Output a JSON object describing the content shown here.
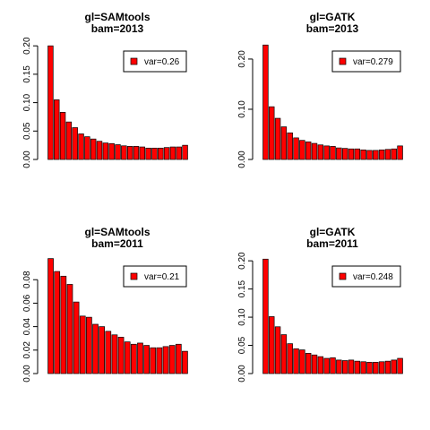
{
  "chart_data": [
    {
      "type": "bar",
      "title": [
        "gl=SAMtools",
        "bam=2013"
      ],
      "legend": {
        "label": "var=0.26",
        "color": "#ff0000",
        "position": "top-right"
      },
      "yticks": [
        0.0,
        0.05,
        0.1,
        0.15,
        0.2
      ],
      "ytick_labels": [
        "0.00",
        "0.05",
        "0.10",
        "0.15",
        "0.20"
      ],
      "ylim": [
        0,
        0.205
      ],
      "values": [
        0.2,
        0.105,
        0.083,
        0.066,
        0.056,
        0.045,
        0.04,
        0.036,
        0.032,
        0.029,
        0.028,
        0.026,
        0.024,
        0.023,
        0.023,
        0.022,
        0.02,
        0.02,
        0.02,
        0.021,
        0.022,
        0.022,
        0.025
      ]
    },
    {
      "type": "bar",
      "title": [
        "gl=GATK",
        "bam=2013"
      ],
      "legend": {
        "label": "var=0.279",
        "color": "#ff0000",
        "position": "top-right"
      },
      "yticks": [
        0.0,
        0.1,
        0.2
      ],
      "ytick_labels": [
        "0.00",
        "0.10",
        "0.20"
      ],
      "ylim": [
        0,
        0.232
      ],
      "values": [
        0.228,
        0.105,
        0.082,
        0.065,
        0.053,
        0.043,
        0.038,
        0.035,
        0.032,
        0.029,
        0.027,
        0.026,
        0.023,
        0.022,
        0.021,
        0.021,
        0.019,
        0.018,
        0.018,
        0.019,
        0.02,
        0.021,
        0.027
      ]
    },
    {
      "type": "bar",
      "title": [
        "gl=SAMtools",
        "bam=2011"
      ],
      "legend": {
        "label": "var=0.21",
        "color": "#ff0000",
        "position": "top-right"
      },
      "yticks": [
        0.0,
        0.02,
        0.04,
        0.06,
        0.08
      ],
      "ytick_labels": [
        "0.00",
        "0.02",
        "0.04",
        "0.06",
        "0.08"
      ],
      "ylim": [
        0,
        0.0985
      ],
      "values": [
        0.098,
        0.087,
        0.083,
        0.076,
        0.061,
        0.049,
        0.048,
        0.042,
        0.04,
        0.036,
        0.033,
        0.031,
        0.027,
        0.025,
        0.026,
        0.024,
        0.022,
        0.022,
        0.023,
        0.024,
        0.025,
        0.019
      ]
    },
    {
      "type": "bar",
      "title": [
        "gl=GATK",
        "bam=2011"
      ],
      "legend": {
        "label": "var=0.248",
        "color": "#ff0000",
        "position": "top-right"
      },
      "yticks": [
        0.0,
        0.05,
        0.1,
        0.15,
        0.2
      ],
      "ytick_labels": [
        "0.00",
        "0.05",
        "0.10",
        "0.15",
        "0.20"
      ],
      "ylim": [
        0,
        0.205
      ],
      "values": [
        0.203,
        0.101,
        0.083,
        0.069,
        0.053,
        0.044,
        0.042,
        0.036,
        0.033,
        0.03,
        0.027,
        0.028,
        0.024,
        0.023,
        0.024,
        0.022,
        0.021,
        0.02,
        0.02,
        0.021,
        0.022,
        0.024,
        0.027
      ]
    }
  ]
}
